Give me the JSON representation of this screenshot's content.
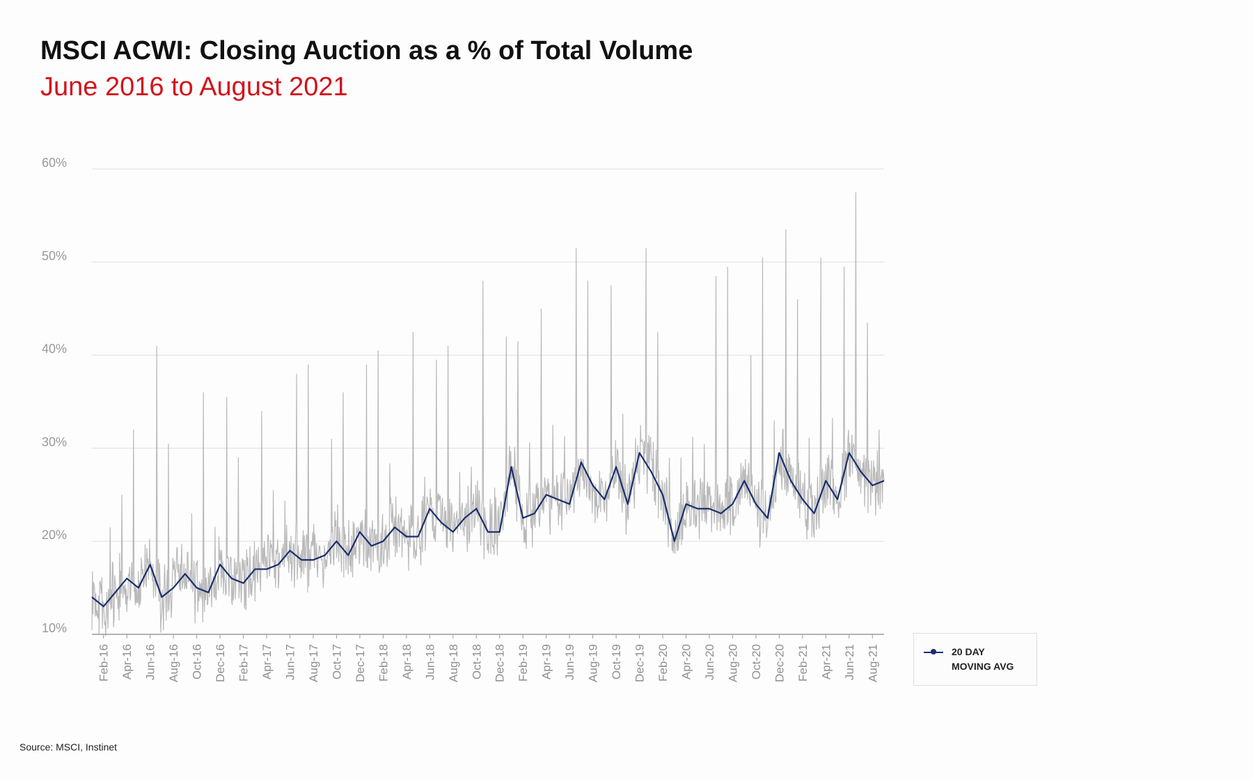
{
  "title": "MSCI ACWI: Closing Auction as a % of Total Volume",
  "subtitle": "June 2016 to August 2021",
  "source": "Source: MSCI, Instinet",
  "colors": {
    "daily": "#b9b9b9",
    "moving_avg": "#1a2e6e",
    "subtitle": "#d0141c",
    "grid": "#e0e0e0"
  },
  "chart_data": {
    "type": "line",
    "title": "MSCI ACWI: Closing Auction as a % of Total Volume",
    "subtitle": "June 2016 to August 2021",
    "ylabel": "",
    "xlabel": "",
    "ylim": [
      10,
      60
    ],
    "yticks": [
      "10%",
      "20%",
      "30%",
      "40%",
      "50%",
      "60%"
    ],
    "grid": true,
    "legend_position": "bottom-right",
    "x_ticks": [
      "Feb-16",
      "Apr-16",
      "Jun-16",
      "Aug-16",
      "Oct-16",
      "Dec-16",
      "Feb-17",
      "Apr-17",
      "Jun-17",
      "Aug-17",
      "Oct-17",
      "Dec-17",
      "Feb-18",
      "Apr-18",
      "Jun-18",
      "Aug-18",
      "Oct-18",
      "Dec-18",
      "Feb-19",
      "Apr-19",
      "Jun-19",
      "Aug-19",
      "Oct-19",
      "Dec-19",
      "Feb-20",
      "Apr-20",
      "Jun-20",
      "Aug-20",
      "Oct-20",
      "Dec-20",
      "Feb-21",
      "Apr-21",
      "Jun-21",
      "Aug-21"
    ],
    "x_range": [
      "2016-01",
      "2021-09"
    ],
    "moving_avg_series": {
      "name": "20 DAY MOVING AVG",
      "x": [
        "2016-01",
        "2016-02",
        "2016-03",
        "2016-04",
        "2016-05",
        "2016-06",
        "2016-07",
        "2016-08",
        "2016-09",
        "2016-10",
        "2016-11",
        "2016-12",
        "2017-01",
        "2017-02",
        "2017-03",
        "2017-04",
        "2017-05",
        "2017-06",
        "2017-07",
        "2017-08",
        "2017-09",
        "2017-10",
        "2017-11",
        "2017-12",
        "2018-01",
        "2018-02",
        "2018-03",
        "2018-04",
        "2018-05",
        "2018-06",
        "2018-07",
        "2018-08",
        "2018-09",
        "2018-10",
        "2018-11",
        "2018-12",
        "2019-01",
        "2019-02",
        "2019-03",
        "2019-04",
        "2019-05",
        "2019-06",
        "2019-07",
        "2019-08",
        "2019-09",
        "2019-10",
        "2019-11",
        "2019-12",
        "2020-01",
        "2020-02",
        "2020-03",
        "2020-04",
        "2020-05",
        "2020-06",
        "2020-07",
        "2020-08",
        "2020-09",
        "2020-10",
        "2020-11",
        "2020-12",
        "2021-01",
        "2021-02",
        "2021-03",
        "2021-04",
        "2021-05",
        "2021-06",
        "2021-07",
        "2021-08",
        "2021-09"
      ],
      "values": [
        14.0,
        13.0,
        14.5,
        16.0,
        15.0,
        17.5,
        14.0,
        15.0,
        16.5,
        15.0,
        14.5,
        17.5,
        16.0,
        15.5,
        17.0,
        17.0,
        17.5,
        19.0,
        18.0,
        18.0,
        18.5,
        20.0,
        18.5,
        21.0,
        19.5,
        20.0,
        21.5,
        20.5,
        20.5,
        23.5,
        22.0,
        21.0,
        22.5,
        23.5,
        21.0,
        21.0,
        28.0,
        22.5,
        23.0,
        25.0,
        24.5,
        24.0,
        28.5,
        26.0,
        24.5,
        28.0,
        24.0,
        29.5,
        27.5,
        25.0,
        20.0,
        24.0,
        23.5,
        23.5,
        23.0,
        24.0,
        26.5,
        24.0,
        22.5,
        29.5,
        26.5,
        24.5,
        23.0,
        26.5,
        24.5,
        29.5,
        27.5,
        26.0,
        26.5
      ]
    },
    "daily_series": {
      "name": "",
      "approx_range": [
        8,
        57.5
      ],
      "peaks": [
        {
          "x": "2016-02",
          "y": 21.5
        },
        {
          "x": "2016-03",
          "y": 25.0
        },
        {
          "x": "2016-04",
          "y": 32.0
        },
        {
          "x": "2016-06",
          "y": 41.0
        },
        {
          "x": "2016-07",
          "y": 30.5
        },
        {
          "x": "2016-09",
          "y": 23.0
        },
        {
          "x": "2016-10",
          "y": 36.0
        },
        {
          "x": "2016-12",
          "y": 35.5
        },
        {
          "x": "2017-01",
          "y": 29.0
        },
        {
          "x": "2017-03",
          "y": 34.0
        },
        {
          "x": "2017-04",
          "y": 25.5
        },
        {
          "x": "2017-06",
          "y": 38.0
        },
        {
          "x": "2017-07",
          "y": 39.0
        },
        {
          "x": "2017-09",
          "y": 31.0
        },
        {
          "x": "2017-10",
          "y": 36.0
        },
        {
          "x": "2017-12",
          "y": 39.0
        },
        {
          "x": "2018-01",
          "y": 40.5
        },
        {
          "x": "2018-04",
          "y": 42.5
        },
        {
          "x": "2018-06",
          "y": 39.5
        },
        {
          "x": "2018-07",
          "y": 41.0
        },
        {
          "x": "2018-10",
          "y": 48.0
        },
        {
          "x": "2018-12",
          "y": 42.0
        },
        {
          "x": "2019-01",
          "y": 41.5
        },
        {
          "x": "2019-03",
          "y": 45.0
        },
        {
          "x": "2019-06",
          "y": 51.5
        },
        {
          "x": "2019-07",
          "y": 48.0
        },
        {
          "x": "2019-09",
          "y": 47.5
        },
        {
          "x": "2019-12",
          "y": 51.5
        },
        {
          "x": "2020-01",
          "y": 42.5
        },
        {
          "x": "2020-06",
          "y": 48.5
        },
        {
          "x": "2020-07",
          "y": 49.5
        },
        {
          "x": "2020-09",
          "y": 40.0
        },
        {
          "x": "2020-10",
          "y": 50.5
        },
        {
          "x": "2020-12",
          "y": 53.5
        },
        {
          "x": "2021-01",
          "y": 46.0
        },
        {
          "x": "2021-03",
          "y": 50.5
        },
        {
          "x": "2021-05",
          "y": 49.5
        },
        {
          "x": "2021-06",
          "y": 57.5
        },
        {
          "x": "2021-07",
          "y": 43.5
        },
        {
          "x": "2021-08",
          "y": 32.0
        }
      ]
    },
    "legend": [
      "20 DAY MOVING AVG"
    ]
  },
  "legend": {
    "line1": "20 DAY",
    "line2": "MOVING AVG"
  }
}
